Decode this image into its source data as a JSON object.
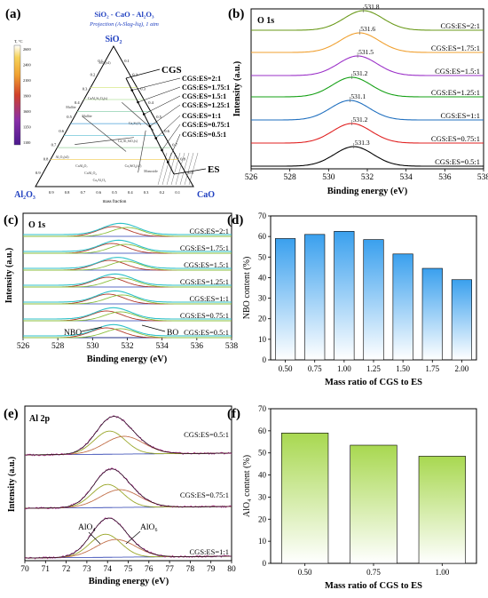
{
  "panels": {
    "a": {
      "tag": "(a)",
      "title": "SiO₂ - CaO - Al₂O₃",
      "subtitle": "Projection (A-Slag-liq), 1 atm",
      "apex_top": "SiO₂",
      "apex_left": "Al₂O₃",
      "apex_right": "CaO",
      "cgs_label": "CGS",
      "es_label": "ES",
      "xlabel": "mass fraction",
      "ratio_labels": [
        "CGS:ES=2:1",
        "CGS:ES=1.75:1",
        "CGS:ES=1.5:1",
        "CGS:ES=1.25:1",
        "CGS:ES=1:1",
        "CGS:ES=0.75:1",
        "CGS:ES=0.5:1"
      ],
      "ticks_bottom": [
        "0.9",
        "0.8",
        "0.7",
        "0.6",
        "0.5",
        "0.4",
        "0.3",
        "0.2",
        "0.1"
      ],
      "ticks_left": [
        "0.9",
        "0.8",
        "0.7",
        "0.6",
        "0.5",
        "0.4",
        "0.3",
        "0.2",
        "0.1"
      ],
      "ticks_right": [
        "0.1",
        "0.2",
        "0.3",
        "0.4",
        "0.5",
        "0.6",
        "0.7",
        "0.8",
        "0.9"
      ],
      "colorbar_unit": "T, °C",
      "colorbar_ticks": [
        "2600",
        "2400",
        "2100",
        "1900",
        "1600",
        "1350",
        "1100"
      ],
      "phase_labels": [
        "SiO₂(s4)",
        "Mullite",
        "CaAl₂Si₂O₈(s)",
        "Mullite",
        "Al₂O₃(s4)",
        "CaAl₄O₇",
        "CaAl₂O₄",
        "Ca₃Al₂O₆",
        "Ca₂SiO₄(s2)",
        "Monoxide",
        "Ca₂Si₃O₉",
        "Ca₂Al₂SiO₇(s)"
      ]
    },
    "b": {
      "tag": "(b)",
      "inset": "O 1s",
      "xlabel": "Binding energy (eV)",
      "ylabel": "Intensity (a.u.)"
    },
    "c": {
      "tag": "(c)",
      "inset": "O 1s",
      "xlabel": "Binding energy (eV)",
      "ylabel": "Intensity (a.u.)",
      "nbo_label": "NBO",
      "bo_label": "BO"
    },
    "d": {
      "tag": "(d)"
    },
    "e": {
      "tag": "(e)",
      "inset": "Al 2p",
      "xlabel": "Binding energy (eV)",
      "ylabel": "Intensity (a.u.)",
      "alo4_label": "AlO₄",
      "alo6_label": "AlO₆"
    },
    "f": {
      "tag": "(f)"
    }
  },
  "chart_data": [
    {
      "panel": "b",
      "type": "line",
      "xlabel": "Binding energy (eV)",
      "ylabel": "Intensity (a.u.)",
      "xlim": [
        526,
        538
      ],
      "xticks": [
        526,
        528,
        530,
        532,
        534,
        536,
        538
      ],
      "grid": false,
      "series": [
        {
          "name": "CGS:ES=0.5:1",
          "peak": 531.3,
          "peak_label": "531.3",
          "color": "#000000"
        },
        {
          "name": "CGS:ES=0.75:1",
          "peak": 531.2,
          "peak_label": "531.2",
          "color": "#e02020"
        },
        {
          "name": "CGS:ES=1:1",
          "peak": 531.1,
          "peak_label": "531.1",
          "color": "#1f6fbf"
        },
        {
          "name": "CGS:ES=1.25:1",
          "peak": 531.2,
          "peak_label": "531.2",
          "color": "#15a015"
        },
        {
          "name": "CGS:ES=1.5:1",
          "peak": 531.5,
          "peak_label": "531.5",
          "color": "#9b30c8"
        },
        {
          "name": "CGS:ES=1.75:1",
          "peak": 531.6,
          "peak_label": "531.6",
          "color": "#f0a030"
        },
        {
          "name": "CGS:ES=2:1",
          "peak": 531.8,
          "peak_label": "531.8",
          "color": "#6a9a1a"
        }
      ]
    },
    {
      "panel": "c",
      "type": "line",
      "xlabel": "Binding energy (eV)",
      "ylabel": "Intensity (a.u.)",
      "xlim": [
        526,
        538
      ],
      "xticks": [
        526,
        528,
        530,
        532,
        534,
        536,
        538
      ],
      "grid": false,
      "series": [
        {
          "name": "CGS:ES=0.5:1",
          "nbo_center": 530.8,
          "bo_center": 531.6
        },
        {
          "name": "CGS:ES=0.75:1",
          "nbo_center": 530.8,
          "bo_center": 531.6
        },
        {
          "name": "CGS:ES=1:1",
          "nbo_center": 530.9,
          "bo_center": 531.7
        },
        {
          "name": "CGS:ES=1.25:1",
          "nbo_center": 530.9,
          "bo_center": 531.7
        },
        {
          "name": "CGS:ES=1.5:1",
          "nbo_center": 531.0,
          "bo_center": 531.9
        },
        {
          "name": "CGS:ES=1.75:1",
          "nbo_center": 531.1,
          "bo_center": 531.9
        },
        {
          "name": "CGS:ES=2:1",
          "nbo_center": 531.2,
          "bo_center": 532.0
        }
      ]
    },
    {
      "panel": "d",
      "type": "bar",
      "categories": [
        "0.50",
        "0.75",
        "1.00",
        "1.25",
        "1.50",
        "1.75",
        "2.00"
      ],
      "values": [
        59,
        61,
        62.5,
        58.5,
        51.5,
        44.5,
        39
      ],
      "xlabel": "Mass ratio of CGS to ES",
      "ylabel": "NBO content (%)",
      "ylim": [
        0,
        70
      ],
      "yticks": [
        0,
        10,
        20,
        30,
        40,
        50,
        60,
        70
      ],
      "bar_color_top": "#3aa0ee",
      "bar_color_bottom": "#ffffff",
      "grid": false
    },
    {
      "panel": "e",
      "type": "line",
      "xlabel": "Binding energy (eV)",
      "ylabel": "Intensity (a.u.)",
      "xlim": [
        70,
        80
      ],
      "xticks": [
        70,
        71,
        72,
        73,
        74,
        75,
        76,
        77,
        78,
        79,
        80
      ],
      "grid": false,
      "series": [
        {
          "name": "CGS:ES=1:1",
          "alo4_center": 73.9,
          "alo6_center": 74.4
        },
        {
          "name": "CGS:ES=0.75:1",
          "alo4_center": 74.0,
          "alo6_center": 74.6
        },
        {
          "name": "CGS:ES=0.5:1",
          "alo4_center": 74.1,
          "alo6_center": 74.8
        }
      ]
    },
    {
      "panel": "f",
      "type": "bar",
      "categories": [
        "0.50",
        "0.75",
        "1.00"
      ],
      "values": [
        59,
        53.5,
        48.5
      ],
      "xlabel": "Mass ratio of CGS to ES",
      "ylabel": "AlO₄ content (%)",
      "ylim": [
        0,
        70
      ],
      "yticks": [
        0,
        10,
        20,
        30,
        40,
        50,
        60,
        70
      ],
      "bar_color_top": "#a8d850",
      "bar_color_bottom": "#ffffff",
      "grid": false
    }
  ]
}
